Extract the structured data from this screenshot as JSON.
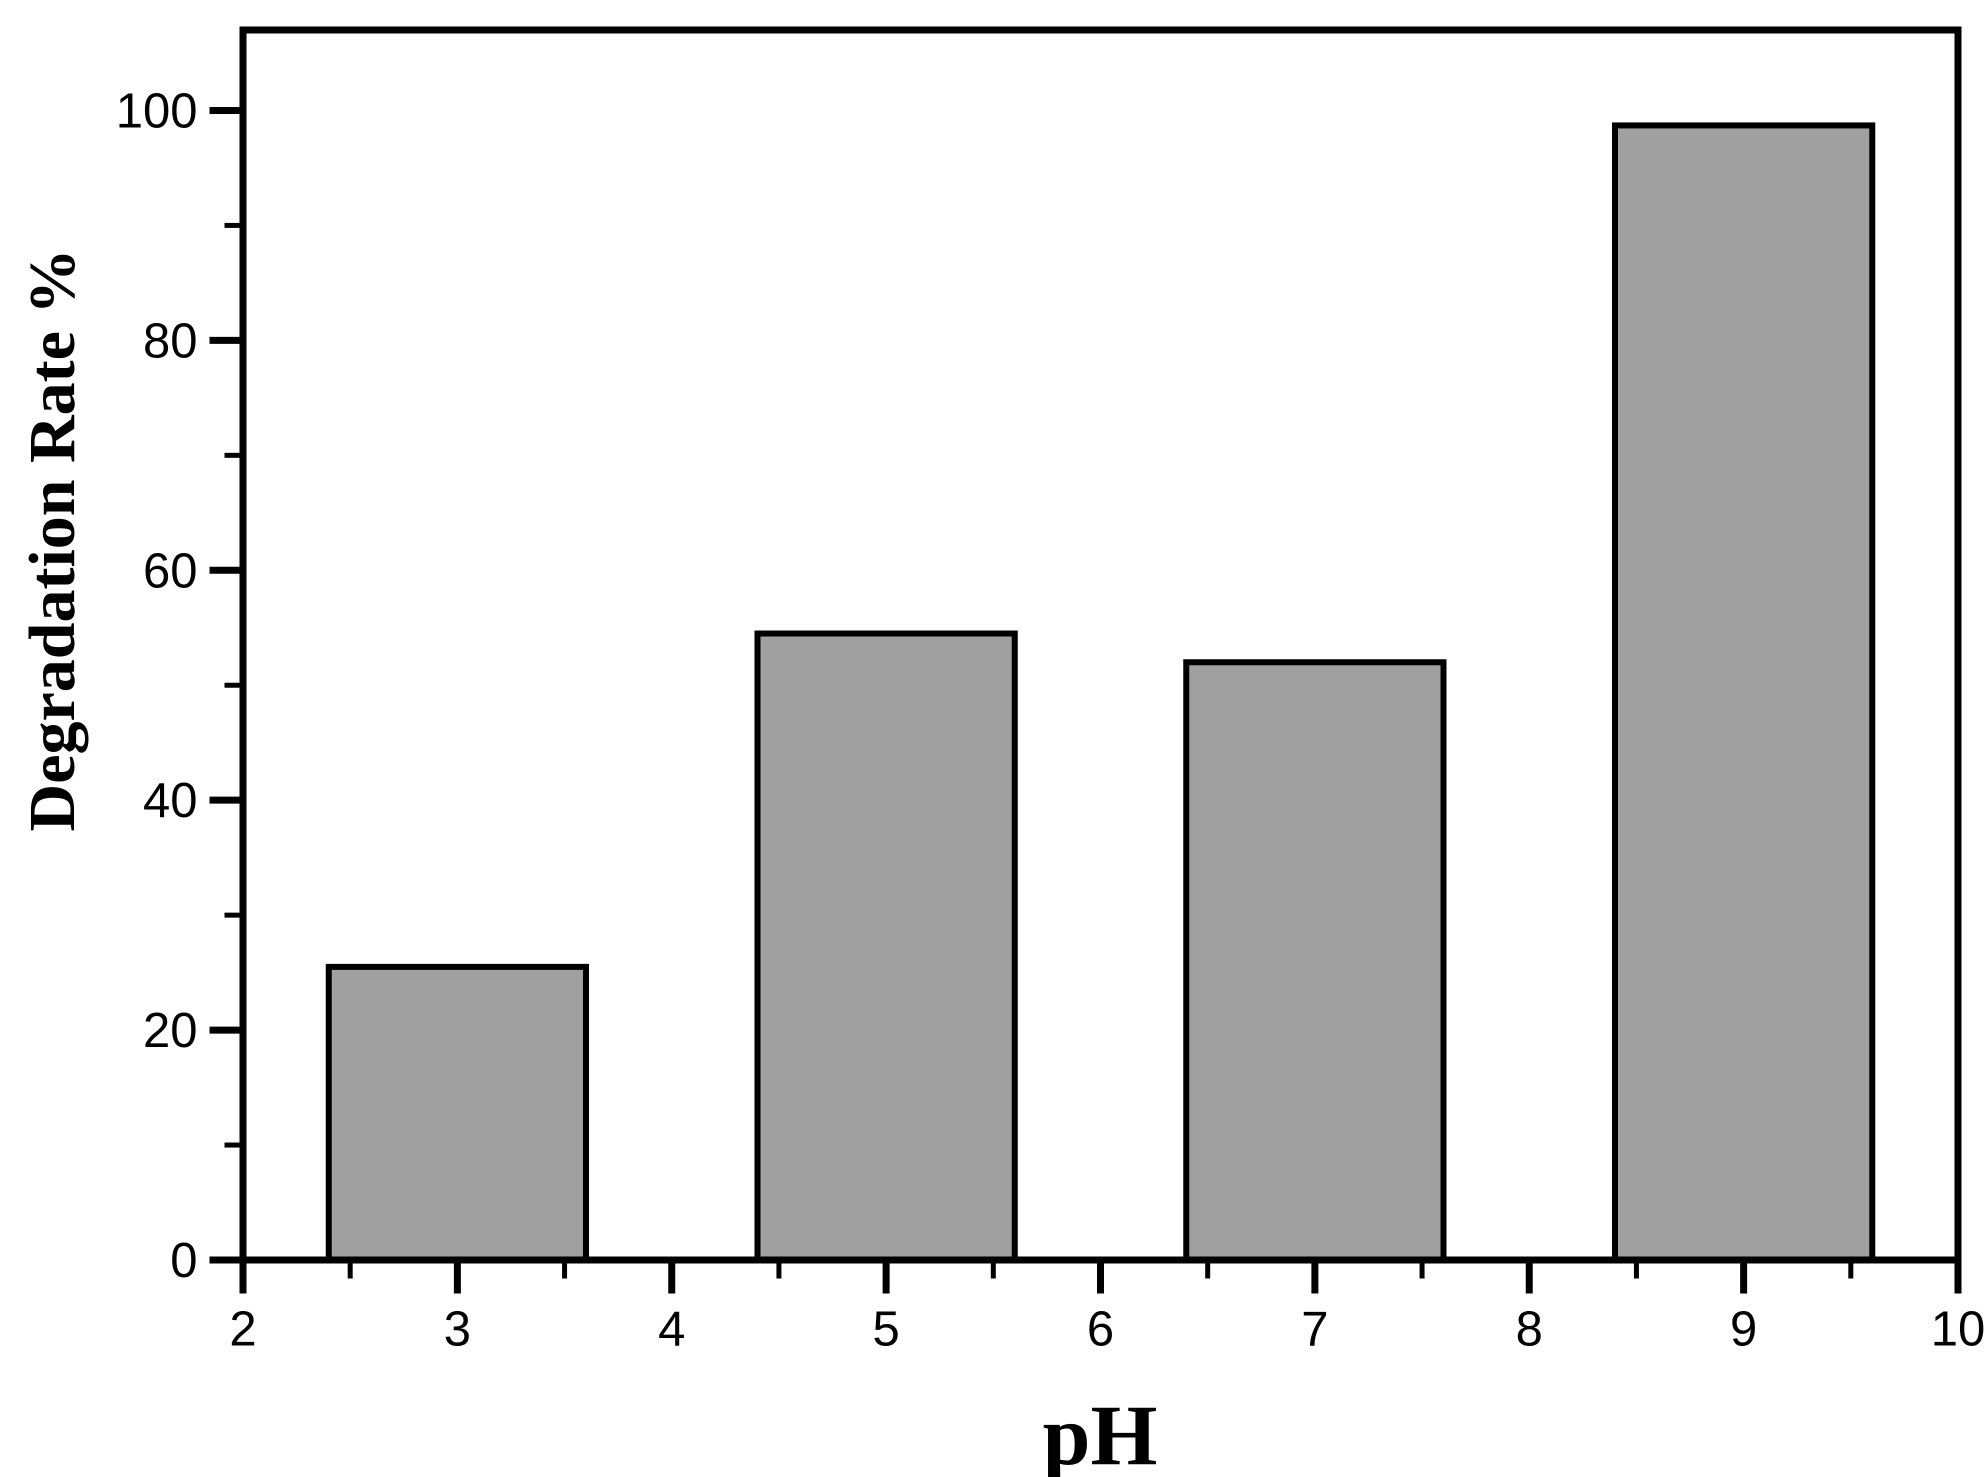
{
  "figure": {
    "background": "#ffffff"
  },
  "chart_data": {
    "type": "bar",
    "categories": [
      3,
      5,
      7,
      9
    ],
    "values": [
      25.5,
      54.5,
      52,
      98.7
    ],
    "bar_width": 1.2,
    "title": "",
    "xlabel": "pH",
    "ylabel": "Degradation Rate %",
    "xlim": [
      2,
      10
    ],
    "ylim": [
      0,
      107
    ],
    "x_major_ticks": [
      2,
      3,
      4,
      5,
      6,
      7,
      8,
      9,
      10
    ],
    "x_minor_ticks": [
      2.5,
      3.5,
      4.5,
      5.5,
      6.5,
      7.5,
      8.5,
      9.5
    ],
    "y_major_ticks": [
      0,
      20,
      40,
      60,
      80,
      100
    ],
    "y_minor_ticks": [
      10,
      30,
      50,
      70,
      90
    ],
    "x_tick_labels": [
      "2",
      "3",
      "4",
      "5",
      "6",
      "7",
      "8",
      "9",
      "10"
    ],
    "y_tick_labels": [
      "0",
      "20",
      "40",
      "60",
      "80",
      "100"
    ],
    "grid": false,
    "legend": null,
    "colors": {
      "bar_fill": "#a0a0a0",
      "bar_edge": "#000000",
      "axis": "#000000",
      "text": "#000000"
    }
  }
}
